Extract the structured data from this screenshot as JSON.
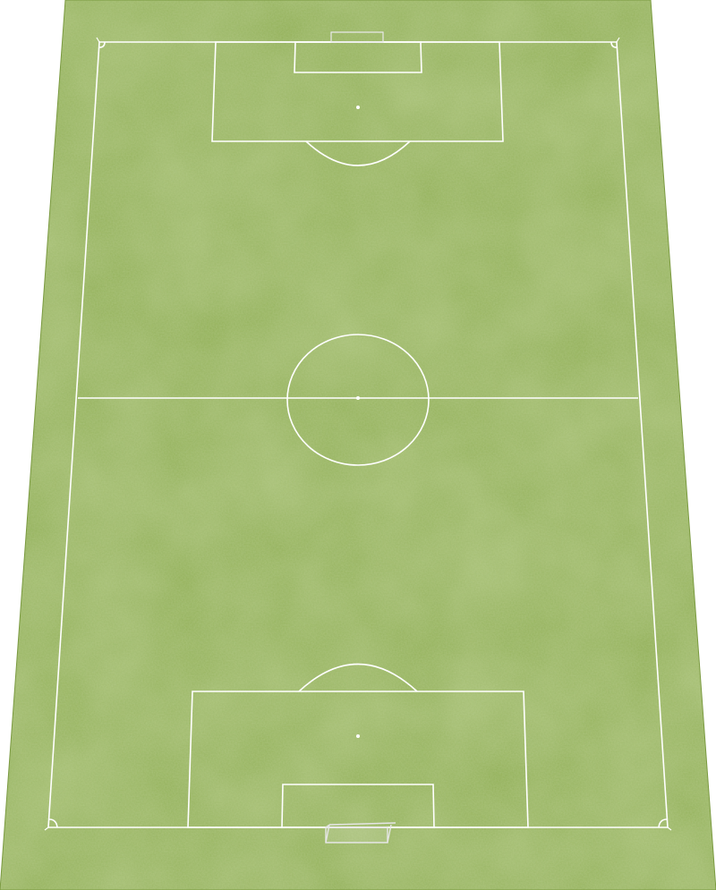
{
  "pitch": {
    "grass_color": "#8fae52",
    "grass_dark": "#7f9f46",
    "grass_light": "#9bb85c",
    "line_color": "#ffffff",
    "view": "perspective-top-down"
  },
  "elements": {
    "center_circle": "center-circle",
    "halfway_line": "halfway-line",
    "top_penalty_area": "penalty-area",
    "bottom_penalty_area": "penalty-area",
    "top_goal": "goal",
    "bottom_goal": "goal"
  }
}
